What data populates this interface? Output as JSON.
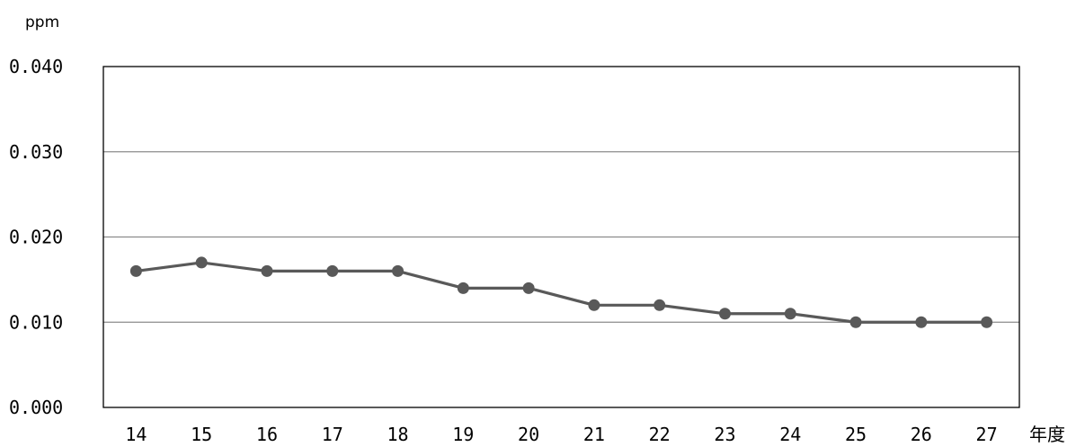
{
  "chart_data": {
    "type": "line",
    "title": "",
    "ylabel": "ppm",
    "xlabel": "年度",
    "ylim": [
      0,
      0.04
    ],
    "yticks": [
      "0.000",
      "0.010",
      "0.020",
      "0.030",
      "0.040"
    ],
    "categories": [
      "14",
      "15",
      "16",
      "17",
      "18",
      "19",
      "20",
      "21",
      "22",
      "23",
      "24",
      "25",
      "26",
      "27"
    ],
    "series": [
      {
        "values": [
          0.016,
          0.017,
          0.016,
          0.016,
          0.016,
          0.014,
          0.014,
          0.012,
          0.012,
          0.011,
          0.011,
          0.01,
          0.01,
          0.01
        ],
        "color": "#595959"
      }
    ],
    "grid": true,
    "legend": "none"
  }
}
